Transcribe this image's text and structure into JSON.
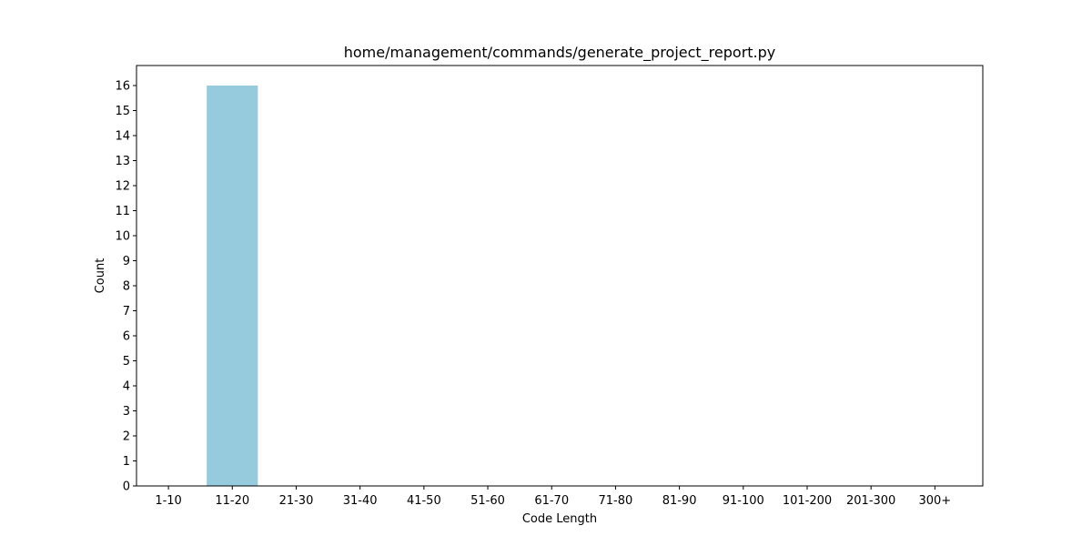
{
  "chart_data": {
    "type": "bar",
    "title": "home/management/commands/generate_project_report.py",
    "xlabel": "Code Length",
    "ylabel": "Count",
    "categories": [
      "1-10",
      "11-20",
      "21-30",
      "31-40",
      "41-50",
      "51-60",
      "61-70",
      "71-80",
      "81-90",
      "91-100",
      "101-200",
      "201-300",
      "300+"
    ],
    "values": [
      0,
      16,
      0,
      0,
      0,
      0,
      0,
      0,
      0,
      0,
      0,
      0,
      0
    ],
    "ylim": [
      0,
      16.8
    ],
    "yticks": [
      0,
      1,
      2,
      3,
      4,
      5,
      6,
      7,
      8,
      9,
      10,
      11,
      12,
      13,
      14,
      15,
      16
    ],
    "grid": false,
    "legend": "none",
    "bar_color": "#96cadd"
  }
}
